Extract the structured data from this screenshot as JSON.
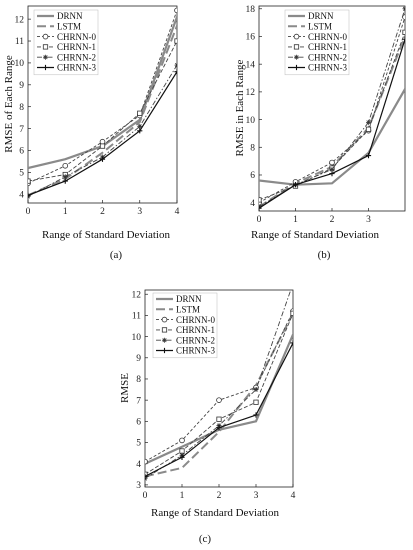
{
  "chart_data": [
    {
      "type": "line",
      "panel_label": "(a)",
      "xlabel": "Range of Standard Deviation",
      "ylabel": "RMSE of Each Range",
      "x_ticks": [
        "0",
        "1",
        "2",
        "3",
        "4"
      ],
      "y_ticks": [
        "4",
        "5",
        "6",
        "7",
        "8",
        "9",
        "10",
        "11",
        "12"
      ],
      "xlim": [
        0,
        4
      ],
      "ylim": [
        3.6,
        12.6
      ],
      "legend_position": "top-left",
      "series": [
        {
          "name": "DRNN",
          "x": [
            0,
            1,
            2,
            3,
            4
          ],
          "values": [
            5.2,
            5.6,
            6.2,
            7.4,
            12.1
          ]
        },
        {
          "name": "LSTM",
          "x": [
            0,
            1,
            2,
            3,
            4
          ],
          "values": [
            3.95,
            4.7,
            5.9,
            7.3,
            11.7
          ]
        },
        {
          "name": "CHRNN-0",
          "x": [
            0,
            1,
            2,
            3,
            4
          ],
          "values": [
            4.5,
            5.3,
            6.4,
            7.6,
            12.4
          ]
        },
        {
          "name": "CHRNN-1",
          "x": [
            0,
            1,
            2,
            3,
            4
          ],
          "values": [
            4.6,
            4.9,
            6.2,
            7.7,
            11.0
          ]
        },
        {
          "name": "CHRNN-2",
          "x": [
            0,
            1,
            2,
            3,
            4
          ],
          "values": [
            3.9,
            4.8,
            5.7,
            7.1,
            9.9
          ]
        },
        {
          "name": "CHRNN-3",
          "x": [
            0,
            1,
            2,
            3,
            4
          ],
          "values": [
            3.95,
            4.6,
            5.6,
            6.9,
            9.6
          ]
        }
      ]
    },
    {
      "type": "line",
      "panel_label": "(b)",
      "xlabel": "Range of Standard Deviation",
      "ylabel": "RMSE in Each Range",
      "x_ticks": [
        "0",
        "1",
        "2",
        "3"
      ],
      "y_ticks": [
        "4",
        "6",
        "8",
        "10",
        "12",
        "14",
        "16",
        "18"
      ],
      "xlim": [
        0,
        4
      ],
      "ylim": [
        3.4,
        18.2
      ],
      "legend_position": "top-right",
      "series": [
        {
          "name": "DRNN",
          "x": [
            0,
            1,
            2,
            3,
            4
          ],
          "values": [
            5.6,
            5.3,
            5.4,
            7.6,
            12.2
          ]
        },
        {
          "name": "LSTM",
          "x": [
            0,
            1,
            2,
            3,
            4
          ],
          "values": [
            3.7,
            5.4,
            6.6,
            9.4,
            16.0
          ]
        },
        {
          "name": "CHRNN-0",
          "x": [
            0,
            1,
            2,
            3,
            4
          ],
          "values": [
            4.0,
            5.5,
            6.9,
            9.2,
            17.4
          ]
        },
        {
          "name": "CHRNN-1",
          "x": [
            0,
            1,
            2,
            3,
            4
          ],
          "values": [
            4.2,
            5.2,
            6.5,
            9.3,
            16.3
          ]
        },
        {
          "name": "CHRNN-2",
          "x": [
            0,
            1,
            2,
            3,
            4
          ],
          "values": [
            3.7,
            5.3,
            6.4,
            9.8,
            18.0
          ]
        },
        {
          "name": "CHRNN-3",
          "x": [
            0,
            1,
            2,
            3,
            4
          ],
          "values": [
            3.6,
            5.3,
            6.1,
            7.4,
            15.8
          ]
        }
      ]
    },
    {
      "type": "line",
      "panel_label": "(c)",
      "xlabel": "Range of Standard Deviation",
      "ylabel": "RMSE",
      "x_ticks": [
        "0",
        "1",
        "2",
        "3",
        "4"
      ],
      "y_ticks": [
        "3",
        "4",
        "5",
        "6",
        "7",
        "8",
        "9",
        "10",
        "11",
        "12"
      ],
      "xlim": [
        0,
        4
      ],
      "ylim": [
        2.9,
        12.2
      ],
      "legend_position": "top-left",
      "series": [
        {
          "name": "DRNN",
          "x": [
            0,
            1,
            2,
            3,
            4
          ],
          "values": [
            4.0,
            4.8,
            5.6,
            6.0,
            10.1
          ]
        },
        {
          "name": "LSTM",
          "x": [
            0,
            1,
            2,
            3,
            4
          ],
          "values": [
            3.4,
            3.8,
            5.5,
            7.7,
            11.1
          ]
        },
        {
          "name": "CHRNN-0",
          "x": [
            0,
            1,
            2,
            3,
            4
          ],
          "values": [
            4.1,
            5.1,
            7.0,
            7.6,
            11.2
          ]
        },
        {
          "name": "CHRNN-1",
          "x": [
            0,
            1,
            2,
            3,
            4
          ],
          "values": [
            3.5,
            4.6,
            6.1,
            6.9,
            11.1
          ]
        },
        {
          "name": "CHRNN-2",
          "x": [
            0,
            1,
            2,
            3,
            4
          ],
          "values": [
            3.3,
            4.4,
            5.8,
            7.5,
            12.5
          ]
        },
        {
          "name": "CHRNN-3",
          "x": [
            0,
            1,
            2,
            3,
            4
          ],
          "values": [
            3.4,
            4.3,
            5.7,
            6.3,
            9.7
          ]
        }
      ]
    }
  ]
}
